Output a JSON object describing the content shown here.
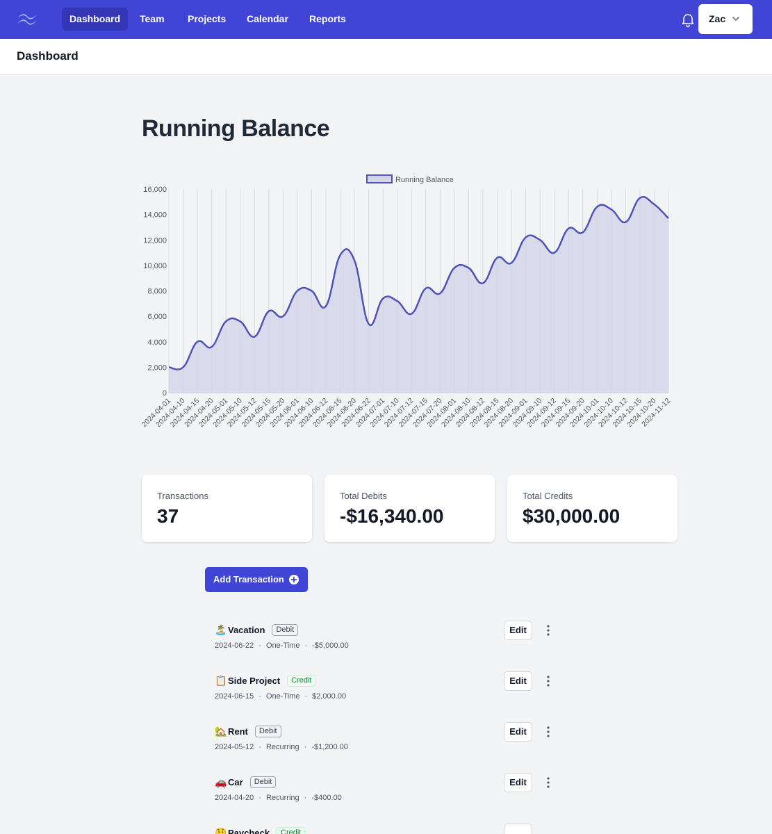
{
  "nav": {
    "items": [
      {
        "label": "Dashboard"
      },
      {
        "label": "Team"
      },
      {
        "label": "Projects"
      },
      {
        "label": "Calendar"
      },
      {
        "label": "Reports"
      }
    ],
    "user": "Zac"
  },
  "header": {
    "title": "Dashboard"
  },
  "chart_section": {
    "title": "Running Balance"
  },
  "chart_data": {
    "type": "area",
    "title": "",
    "legend": {
      "label": "Running Balance",
      "placement": "top-center"
    },
    "x": [
      "2024-04-01",
      "2024-04-10",
      "2024-04-15",
      "2024-04-20",
      "2024-05-01",
      "2024-05-10",
      "2024-05-12",
      "2024-05-15",
      "2024-05-20",
      "2024-06-01",
      "2024-06-10",
      "2024-06-12",
      "2024-06-15",
      "2024-06-20",
      "2024-06-22",
      "2024-07-01",
      "2024-07-10",
      "2024-07-12",
      "2024-07-15",
      "2024-07-20",
      "2024-08-01",
      "2024-08-10",
      "2024-08-12",
      "2024-08-15",
      "2024-08-20",
      "2024-09-01",
      "2024-09-10",
      "2024-09-12",
      "2024-09-15",
      "2024-09-20",
      "2024-10-01",
      "2024-10-10",
      "2024-10-12",
      "2024-10-15",
      "2024-10-20",
      "2024-11-12"
    ],
    "series": [
      {
        "name": "Running Balance",
        "values": [
          2000,
          2000,
          4000,
          3600,
          5600,
          5600,
          4400,
          6400,
          6000,
          8000,
          8000,
          6800,
          10800,
          10400,
          5400,
          7400,
          7200,
          6200,
          8200,
          7800,
          9800,
          9800,
          8600,
          10600,
          10200,
          12200,
          12000,
          11000,
          12900,
          12600,
          14600,
          14400,
          13400,
          15300,
          14800,
          13700
        ]
      }
    ],
    "yticks": [
      "16,000",
      "14,000",
      "12,000",
      "10,000",
      "8,000",
      "6,000",
      "4,000",
      "2,000",
      "0"
    ],
    "ylim": [
      0,
      16000
    ],
    "grid": {
      "vertical": true,
      "horizontal": false
    },
    "colors": {
      "line": "#4f52b8",
      "fill": "#d4d5ea"
    }
  },
  "stats": [
    {
      "label": "Transactions",
      "value": "37"
    },
    {
      "label": "Total Debits",
      "value": "-$16,340.00"
    },
    {
      "label": "Total Credits",
      "value": "$30,000.00"
    }
  ],
  "add_button": {
    "label": "Add Transaction"
  },
  "transactions": [
    {
      "emoji": "🏝️",
      "name": "Vacation",
      "type": "Debit",
      "date": "2024-06-22",
      "frequency": "One-Time",
      "amount": "-$5,000.00",
      "edit": "Edit"
    },
    {
      "emoji": "📋",
      "name": "Side Project",
      "type": "Credit",
      "date": "2024-06-15",
      "frequency": "One-Time",
      "amount": "$2,000.00",
      "edit": "Edit"
    },
    {
      "emoji": "🏡",
      "name": "Rent",
      "type": "Debit",
      "date": "2024-05-12",
      "frequency": "Recurring",
      "amount": "-$1,200.00",
      "edit": "Edit"
    },
    {
      "emoji": "🚗",
      "name": "Car",
      "type": "Debit",
      "date": "2024-04-20",
      "frequency": "Recurring",
      "amount": "-$400.00",
      "edit": "Edit"
    },
    {
      "emoji": "🤑",
      "name": "Paycheck",
      "type": "Credit",
      "date": "",
      "frequency": "",
      "amount": "",
      "edit": ""
    }
  ],
  "colors": {
    "nav_bg": "#4145d6",
    "nav_active": "#3436b5",
    "accent": "#4145d6"
  }
}
